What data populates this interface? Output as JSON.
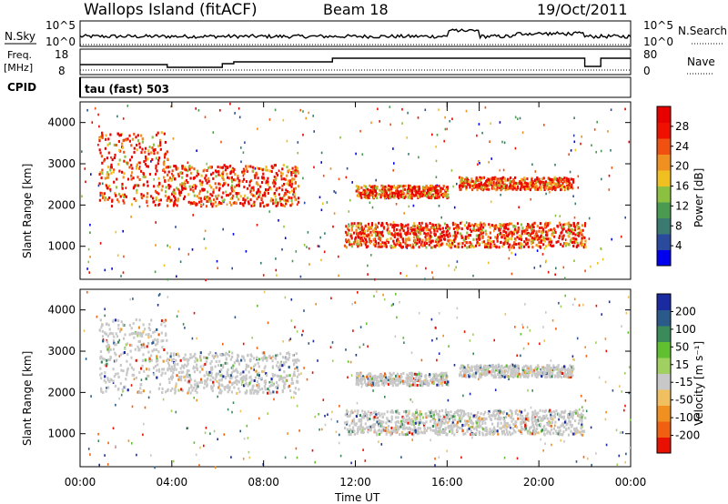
{
  "header": {
    "station": "Wallops Island (fitACF)",
    "beam": "Beam 18",
    "date": "19/Oct/2011"
  },
  "panels": {
    "nsky": {
      "label": "N.Sky",
      "ticks_left": [
        "10^5",
        "10^0"
      ],
      "ticks_right": [
        "10^5",
        "10^0"
      ],
      "right_label": "N.Search"
    },
    "freq": {
      "label_top": "Freq.",
      "label_unit": "[MHz]",
      "ticks_left": [
        "18",
        "8"
      ],
      "ticks_right": [
        "80",
        "0"
      ],
      "right_label": "Nave"
    },
    "cpid": {
      "label": "CPID",
      "text": "tau (fast) 503"
    }
  },
  "chart_data": [
    {
      "type": "heatmap",
      "title": "",
      "xlabel": "",
      "ylabel": "Slant Range [km]",
      "yticks": [
        "1000",
        "2000",
        "3000",
        "4000"
      ],
      "ylim": [
        200,
        4500
      ],
      "xlim": [
        0,
        24
      ],
      "colorbar": {
        "label": "Power [dB]",
        "ticks": [
          "4",
          "8",
          "12",
          "16",
          "20",
          "24",
          "28"
        ],
        "colors": [
          "#0000ee",
          "#2a4a9e",
          "#3a7a70",
          "#4a9a50",
          "#8cc040",
          "#f0c020",
          "#f09020",
          "#f05010",
          "#f01000",
          "#e80000"
        ]
      },
      "bands": [
        {
          "t": [
            0.8,
            3.8
          ],
          "range": [
            2000,
            3800
          ],
          "level": "strong"
        },
        {
          "t": [
            3.8,
            9.5
          ],
          "range": [
            2000,
            3000
          ],
          "level": "strong"
        },
        {
          "t": [
            11.5,
            22
          ],
          "range": [
            1000,
            1600
          ],
          "level": "strong"
        },
        {
          "t": [
            12,
            16
          ],
          "range": [
            2200,
            2500
          ],
          "level": "strong"
        },
        {
          "t": [
            16.5,
            21.5
          ],
          "range": [
            2400,
            2700
          ],
          "level": "medium"
        }
      ]
    },
    {
      "type": "heatmap",
      "title": "",
      "xlabel": "Time UT",
      "ylabel": "Slant Range [km]",
      "yticks": [
        "1000",
        "2000",
        "3000",
        "4000"
      ],
      "xticks": [
        "00:00",
        "04:00",
        "08:00",
        "12:00",
        "16:00",
        "20:00",
        "00:00"
      ],
      "ylim": [
        200,
        4500
      ],
      "xlim": [
        0,
        24
      ],
      "colorbar": {
        "label": "Velocity [m s⁻¹]",
        "ticks": [
          "200",
          "100",
          "50",
          "15",
          "-15",
          "-50",
          "-100",
          "-200"
        ],
        "colors": [
          "#1a2aa0",
          "#2a5a8a",
          "#3a8a5a",
          "#60c030",
          "#a0d060",
          "#c8c8c8",
          "#f0c060",
          "#f09020",
          "#f06010",
          "#e81000"
        ]
      },
      "bands": [
        {
          "t": [
            0.8,
            3.8
          ],
          "range": [
            2000,
            3800
          ],
          "level": "ground"
        },
        {
          "t": [
            3.8,
            9.5
          ],
          "range": [
            2000,
            3000
          ],
          "level": "ground"
        },
        {
          "t": [
            11.5,
            22
          ],
          "range": [
            1000,
            1600
          ],
          "level": "ground"
        },
        {
          "t": [
            12,
            16
          ],
          "range": [
            2200,
            2500
          ],
          "level": "ground"
        },
        {
          "t": [
            16.5,
            21.5
          ],
          "range": [
            2400,
            2700
          ],
          "level": "ground"
        }
      ]
    }
  ]
}
